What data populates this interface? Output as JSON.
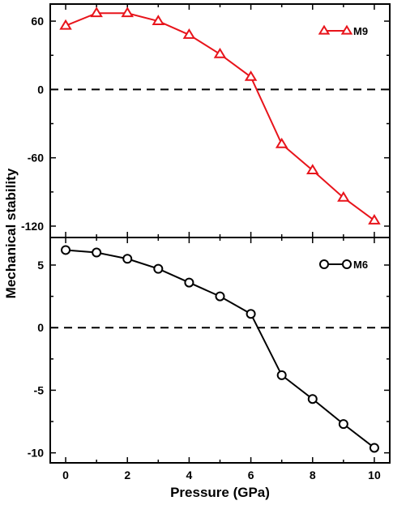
{
  "chart_data": [
    {
      "type": "line",
      "panel": "top",
      "x": [
        0,
        1,
        2,
        3,
        4,
        5,
        6,
        7,
        8,
        9,
        10
      ],
      "series": [
        {
          "name": "M9",
          "marker": "triangle",
          "color": "#e8141b",
          "values": [
            56,
            67,
            67,
            60,
            48,
            31,
            11,
            -48,
            -71,
            -95,
            -115
          ]
        }
      ],
      "ylim": [
        -130,
        75
      ],
      "yticks": [
        60,
        0,
        -60,
        -120
      ],
      "reference_line": 0,
      "legend": "top-right",
      "grid": false
    },
    {
      "type": "line",
      "panel": "bottom",
      "x": [
        0,
        1,
        2,
        3,
        4,
        5,
        6,
        7,
        8,
        9,
        10
      ],
      "series": [
        {
          "name": "M6",
          "marker": "circle",
          "color": "#000000",
          "values": [
            6.2,
            6.0,
            5.5,
            4.7,
            3.6,
            2.5,
            1.1,
            -3.8,
            -5.7,
            -7.7,
            -9.6
          ]
        }
      ],
      "ylim": [
        -10.8,
        7.2
      ],
      "yticks": [
        5,
        0,
        -5,
        -10
      ],
      "reference_line": 0,
      "legend": "top-right",
      "grid": false
    }
  ],
  "shared": {
    "xlabel": "Pressure (GPa)",
    "ylabel": "Mechanical stability",
    "xlim": [
      -0.5,
      10.5
    ],
    "xticks": [
      0,
      2,
      4,
      6,
      8,
      10
    ]
  }
}
